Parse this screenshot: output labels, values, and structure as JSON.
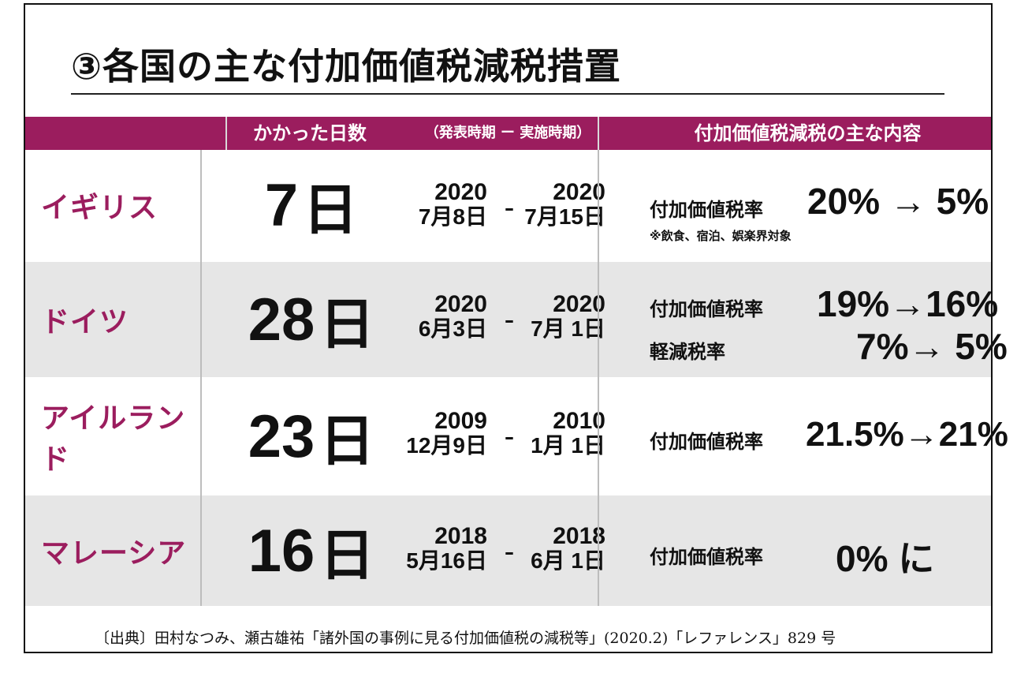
{
  "title": "③各国の主な付加価値税減税措置",
  "header": {
    "days": "かかった日数",
    "period": "（発表時期 ー 実施時期）",
    "content": "付加価値税減税の主な内容"
  },
  "rows": [
    {
      "country": "イギリス",
      "days": "7",
      "days_unit": "日",
      "announce_year": "2020",
      "announce_md": "7月8日",
      "implement_year": "2020",
      "implement_md": "7月15日",
      "rate_label": "付加価値税率",
      "rate_value": "20% →  5%",
      "note": "※飲食、宿泊、娯楽界対象"
    },
    {
      "country": "ドイツ",
      "days": "28",
      "days_unit": "日",
      "announce_year": "2020",
      "announce_md": "6月3日",
      "implement_year": "2020",
      "implement_md": "7月 1日",
      "rate_label": "付加価値税率",
      "rate_value": "19%→16%",
      "rate_label2": "軽減税率",
      "rate_value2": "7%→  5%"
    },
    {
      "country": "アイルランド",
      "days": "23",
      "days_unit": "日",
      "announce_year": "2009",
      "announce_md": "12月9日",
      "implement_year": "2010",
      "implement_md": "1月 1日",
      "rate_label": "付加価値税率",
      "rate_value": "21.5%→21%"
    },
    {
      "country": "マレーシア",
      "days": "16",
      "days_unit": "日",
      "announce_year": "2018",
      "announce_md": "5月16日",
      "implement_year": "2018",
      "implement_md": "6月 1日",
      "rate_label": "付加価値税率",
      "rate_value": "0% に"
    }
  ],
  "source": "〔出典〕田村なつみ、瀬古雄祐「諸外国の事例に見る付加価値税の減税等」(2020.2)「レファレンス」829 号",
  "colors": {
    "accent": "#9b1d5e",
    "shade": "#e6e6e6"
  }
}
